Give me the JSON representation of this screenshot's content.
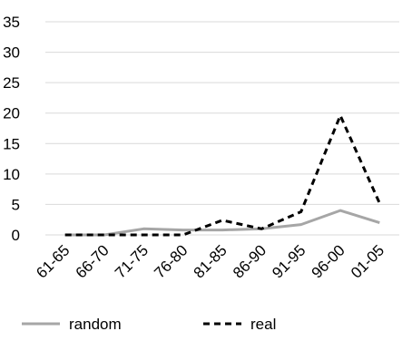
{
  "chart_data": {
    "type": "line",
    "categories": [
      "61-65",
      "66-70",
      "71-75",
      "76-80",
      "81-85",
      "86-90",
      "91-95",
      "96-00",
      "01-05"
    ],
    "series": [
      {
        "name": "random",
        "values": [
          0,
          0,
          1.0,
          0.8,
          0.8,
          1.0,
          1.7,
          4.0,
          2.0
        ],
        "color": "#a6a6a6",
        "style": "solid"
      },
      {
        "name": "real",
        "values": [
          0,
          0,
          0,
          0,
          2.4,
          1.0,
          3.8,
          19.6,
          5.2
        ],
        "color": "#000000",
        "style": "dashed"
      }
    ],
    "ylim": [
      0,
      35
    ],
    "yticks": [
      0,
      5,
      10,
      15,
      20,
      25,
      30,
      35
    ],
    "grid": true,
    "legend_position": "bottom"
  }
}
